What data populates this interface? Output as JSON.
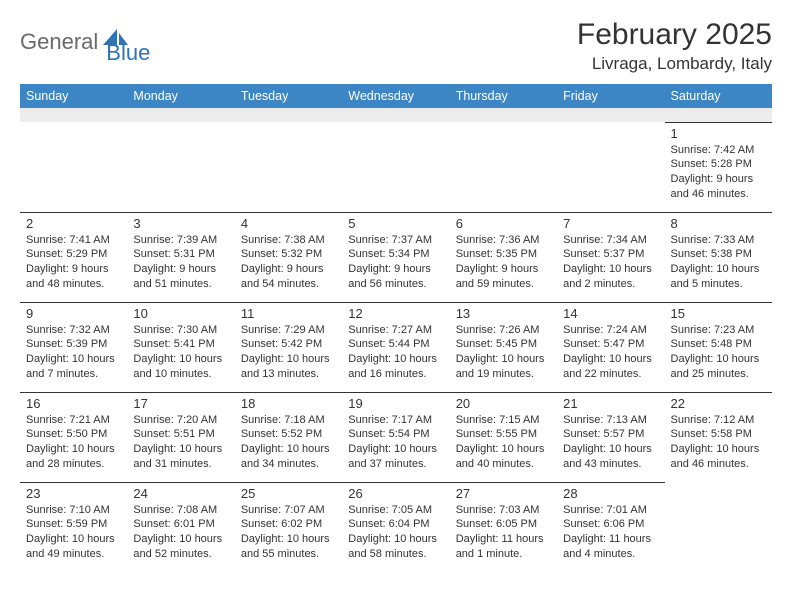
{
  "brand": {
    "word1": "General",
    "word2": "Blue"
  },
  "title": "February 2025",
  "location": "Livraga, Lombardy, Italy",
  "colors": {
    "header_bg": "#3d86c6",
    "header_text": "#ffffff",
    "spacer_bg": "#ececec",
    "brand_gray": "#6a6a6a",
    "brand_blue": "#2f75b5",
    "text": "#333333",
    "cell_border": "#333333"
  },
  "weekdays": [
    "Sunday",
    "Monday",
    "Tuesday",
    "Wednesday",
    "Thursday",
    "Friday",
    "Saturday"
  ],
  "weeks": [
    [
      null,
      null,
      null,
      null,
      null,
      null,
      {
        "n": "1",
        "sunrise": "Sunrise: 7:42 AM",
        "sunset": "Sunset: 5:28 PM",
        "day1": "Daylight: 9 hours",
        "day2": "and 46 minutes."
      }
    ],
    [
      {
        "n": "2",
        "sunrise": "Sunrise: 7:41 AM",
        "sunset": "Sunset: 5:29 PM",
        "day1": "Daylight: 9 hours",
        "day2": "and 48 minutes."
      },
      {
        "n": "3",
        "sunrise": "Sunrise: 7:39 AM",
        "sunset": "Sunset: 5:31 PM",
        "day1": "Daylight: 9 hours",
        "day2": "and 51 minutes."
      },
      {
        "n": "4",
        "sunrise": "Sunrise: 7:38 AM",
        "sunset": "Sunset: 5:32 PM",
        "day1": "Daylight: 9 hours",
        "day2": "and 54 minutes."
      },
      {
        "n": "5",
        "sunrise": "Sunrise: 7:37 AM",
        "sunset": "Sunset: 5:34 PM",
        "day1": "Daylight: 9 hours",
        "day2": "and 56 minutes."
      },
      {
        "n": "6",
        "sunrise": "Sunrise: 7:36 AM",
        "sunset": "Sunset: 5:35 PM",
        "day1": "Daylight: 9 hours",
        "day2": "and 59 minutes."
      },
      {
        "n": "7",
        "sunrise": "Sunrise: 7:34 AM",
        "sunset": "Sunset: 5:37 PM",
        "day1": "Daylight: 10 hours",
        "day2": "and 2 minutes."
      },
      {
        "n": "8",
        "sunrise": "Sunrise: 7:33 AM",
        "sunset": "Sunset: 5:38 PM",
        "day1": "Daylight: 10 hours",
        "day2": "and 5 minutes."
      }
    ],
    [
      {
        "n": "9",
        "sunrise": "Sunrise: 7:32 AM",
        "sunset": "Sunset: 5:39 PM",
        "day1": "Daylight: 10 hours",
        "day2": "and 7 minutes."
      },
      {
        "n": "10",
        "sunrise": "Sunrise: 7:30 AM",
        "sunset": "Sunset: 5:41 PM",
        "day1": "Daylight: 10 hours",
        "day2": "and 10 minutes."
      },
      {
        "n": "11",
        "sunrise": "Sunrise: 7:29 AM",
        "sunset": "Sunset: 5:42 PM",
        "day1": "Daylight: 10 hours",
        "day2": "and 13 minutes."
      },
      {
        "n": "12",
        "sunrise": "Sunrise: 7:27 AM",
        "sunset": "Sunset: 5:44 PM",
        "day1": "Daylight: 10 hours",
        "day2": "and 16 minutes."
      },
      {
        "n": "13",
        "sunrise": "Sunrise: 7:26 AM",
        "sunset": "Sunset: 5:45 PM",
        "day1": "Daylight: 10 hours",
        "day2": "and 19 minutes."
      },
      {
        "n": "14",
        "sunrise": "Sunrise: 7:24 AM",
        "sunset": "Sunset: 5:47 PM",
        "day1": "Daylight: 10 hours",
        "day2": "and 22 minutes."
      },
      {
        "n": "15",
        "sunrise": "Sunrise: 7:23 AM",
        "sunset": "Sunset: 5:48 PM",
        "day1": "Daylight: 10 hours",
        "day2": "and 25 minutes."
      }
    ],
    [
      {
        "n": "16",
        "sunrise": "Sunrise: 7:21 AM",
        "sunset": "Sunset: 5:50 PM",
        "day1": "Daylight: 10 hours",
        "day2": "and 28 minutes."
      },
      {
        "n": "17",
        "sunrise": "Sunrise: 7:20 AM",
        "sunset": "Sunset: 5:51 PM",
        "day1": "Daylight: 10 hours",
        "day2": "and 31 minutes."
      },
      {
        "n": "18",
        "sunrise": "Sunrise: 7:18 AM",
        "sunset": "Sunset: 5:52 PM",
        "day1": "Daylight: 10 hours",
        "day2": "and 34 minutes."
      },
      {
        "n": "19",
        "sunrise": "Sunrise: 7:17 AM",
        "sunset": "Sunset: 5:54 PM",
        "day1": "Daylight: 10 hours",
        "day2": "and 37 minutes."
      },
      {
        "n": "20",
        "sunrise": "Sunrise: 7:15 AM",
        "sunset": "Sunset: 5:55 PM",
        "day1": "Daylight: 10 hours",
        "day2": "and 40 minutes."
      },
      {
        "n": "21",
        "sunrise": "Sunrise: 7:13 AM",
        "sunset": "Sunset: 5:57 PM",
        "day1": "Daylight: 10 hours",
        "day2": "and 43 minutes."
      },
      {
        "n": "22",
        "sunrise": "Sunrise: 7:12 AM",
        "sunset": "Sunset: 5:58 PM",
        "day1": "Daylight: 10 hours",
        "day2": "and 46 minutes."
      }
    ],
    [
      {
        "n": "23",
        "sunrise": "Sunrise: 7:10 AM",
        "sunset": "Sunset: 5:59 PM",
        "day1": "Daylight: 10 hours",
        "day2": "and 49 minutes."
      },
      {
        "n": "24",
        "sunrise": "Sunrise: 7:08 AM",
        "sunset": "Sunset: 6:01 PM",
        "day1": "Daylight: 10 hours",
        "day2": "and 52 minutes."
      },
      {
        "n": "25",
        "sunrise": "Sunrise: 7:07 AM",
        "sunset": "Sunset: 6:02 PM",
        "day1": "Daylight: 10 hours",
        "day2": "and 55 minutes."
      },
      {
        "n": "26",
        "sunrise": "Sunrise: 7:05 AM",
        "sunset": "Sunset: 6:04 PM",
        "day1": "Daylight: 10 hours",
        "day2": "and 58 minutes."
      },
      {
        "n": "27",
        "sunrise": "Sunrise: 7:03 AM",
        "sunset": "Sunset: 6:05 PM",
        "day1": "Daylight: 11 hours",
        "day2": "and 1 minute."
      },
      {
        "n": "28",
        "sunrise": "Sunrise: 7:01 AM",
        "sunset": "Sunset: 6:06 PM",
        "day1": "Daylight: 11 hours",
        "day2": "and 4 minutes."
      },
      null
    ]
  ]
}
